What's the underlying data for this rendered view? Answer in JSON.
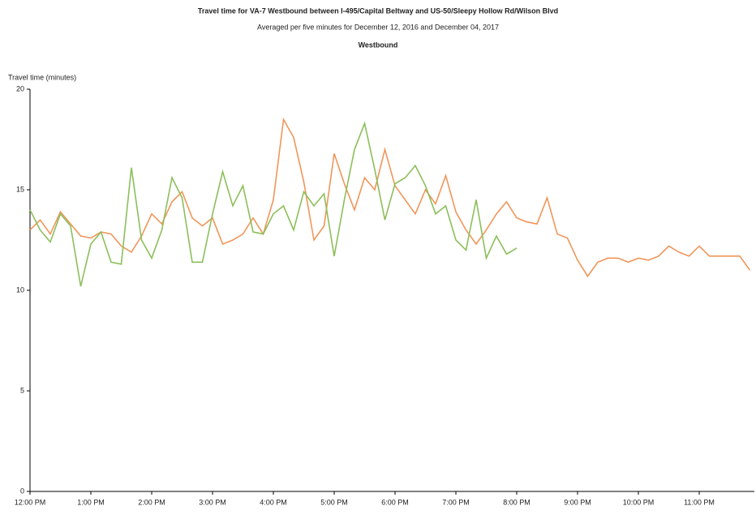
{
  "chart_data": {
    "type": "line",
    "title": "Travel time for VA-7  Westbound between I-495/Capital Beltway and US-50/Sleepy Hollow Rd/Wilson Blvd",
    "subtitle": "Averaged per five minutes for December 12, 2016 and December 04, 2017",
    "direction_label": "Westbound",
    "y_label": "Travel time (minutes)",
    "categories": [
      "12:00 PM",
      null,
      null,
      null,
      null,
      null,
      "1:00 PM",
      null,
      null,
      null,
      null,
      null,
      "2:00 PM",
      null,
      null,
      null,
      null,
      null,
      "3:00 PM",
      null,
      null,
      null,
      null,
      null,
      "4:00 PM",
      null,
      null,
      null,
      null,
      null,
      "5:00 PM",
      null,
      null,
      null,
      null,
      null,
      "6:00 PM",
      null,
      null,
      null,
      null,
      null,
      "7:00 PM",
      null,
      null,
      null,
      null,
      null,
      "8:00 PM",
      null,
      null,
      null,
      null,
      null,
      "9:00 PM",
      null,
      null,
      null,
      null,
      null,
      "10:00 PM",
      null,
      null,
      null,
      null,
      null,
      "11:00 PM",
      null,
      null,
      null,
      null,
      null
    ],
    "series": [
      {
        "color": "#f0965a",
        "values": [
          13.0,
          13.5,
          12.8,
          13.9,
          13.3,
          12.7,
          12.6,
          12.9,
          12.8,
          12.2,
          11.9,
          12.7,
          13.8,
          13.3,
          14.4,
          14.9,
          13.6,
          13.2,
          13.6,
          12.3,
          12.5,
          12.8,
          13.6,
          12.8,
          14.5,
          18.5,
          17.6,
          15.4,
          12.5,
          13.2,
          16.8,
          15.3,
          14.0,
          15.6,
          15.0,
          17.0,
          15.2,
          14.5,
          13.8,
          15.0,
          14.3,
          15.7,
          13.9,
          13.0,
          12.3,
          13.0,
          13.8,
          14.4,
          13.6,
          13.4,
          13.3,
          14.6,
          12.8,
          12.6,
          11.5,
          10.7,
          11.4,
          11.6,
          11.6,
          11.4,
          11.6,
          11.5,
          11.7,
          12.2,
          11.9,
          11.7,
          12.2,
          11.7,
          11.7,
          11.7,
          11.7,
          11.0
        ]
      },
      {
        "color": "#8cbf5a",
        "values": [
          14.0,
          13.0,
          12.4,
          13.8,
          13.2,
          10.2,
          12.3,
          12.9,
          11.4,
          11.3,
          16.1,
          12.5,
          11.6,
          13.0,
          15.6,
          14.6,
          11.4,
          11.4,
          13.8,
          15.9,
          14.2,
          15.2,
          12.9,
          12.8,
          13.8,
          14.2,
          13.0,
          14.9,
          14.2,
          14.8,
          11.7,
          14.5,
          17.0,
          18.3,
          16.0,
          13.5,
          15.3,
          15.6,
          16.2,
          15.2,
          13.8,
          14.2,
          12.5,
          12.0,
          14.5,
          11.6,
          12.7,
          11.8,
          12.1,
          null,
          null,
          null,
          null,
          null,
          null,
          null,
          null,
          null,
          null,
          null,
          null,
          null,
          null,
          null,
          null,
          null,
          null,
          null,
          null,
          null,
          null,
          null
        ]
      }
    ],
    "ylim": [
      0,
      20
    ],
    "yticks": [
      0,
      5,
      10,
      15,
      20
    ]
  }
}
